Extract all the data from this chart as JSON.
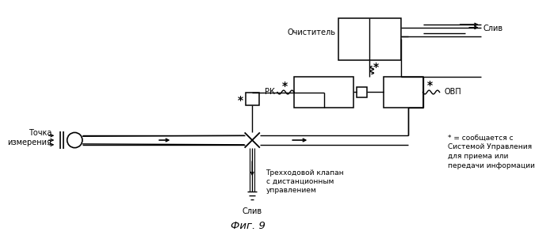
{
  "title": "Фиг. 9",
  "background_color": "#ffffff",
  "line_color": "#000000",
  "fig_width": 6.99,
  "fig_height": 3.07,
  "dpi": 100,
  "labels": {
    "tochka": "Точка\nизмерения",
    "ochist": "Очиститель",
    "rk": "РК",
    "ovp": "ОВП",
    "trekhod": "Трехходовой клапан\nс дистанционным\nуправлением",
    "sliv_bottom": "Слив",
    "sliv_top": "Слив",
    "legend_star": "* = сообщается с\nСистемой Управления\nдля приема или\nпередачи информации"
  }
}
